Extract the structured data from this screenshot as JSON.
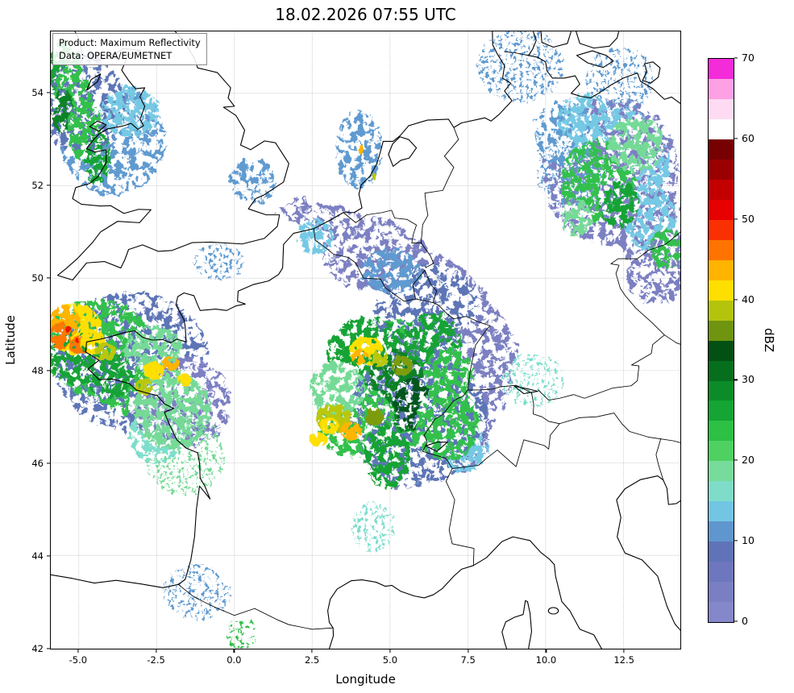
{
  "title": "18.02.2026 07:55 UTC",
  "info_box": {
    "line1": "Product: Maximum Reflectivity",
    "line2": "Data: OPERA/EUMETNET"
  },
  "axes": {
    "xlabel": "Longitude",
    "ylabel": "Latitude",
    "lon_min": -5.9,
    "lon_max": 14.33,
    "lat_min": 41.98,
    "lat_max": 55.34,
    "xticks": [
      {
        "v": -5.0,
        "label": "-5.0"
      },
      {
        "v": -2.5,
        "label": "-2.5"
      },
      {
        "v": 0.0,
        "label": "0.0"
      },
      {
        "v": 2.5,
        "label": "2.5"
      },
      {
        "v": 5.0,
        "label": "5.0"
      },
      {
        "v": 7.5,
        "label": "7.5"
      },
      {
        "v": 10.0,
        "label": "10.0"
      },
      {
        "v": 12.5,
        "label": "12.5"
      }
    ],
    "yticks": [
      {
        "v": 54,
        "label": "54"
      },
      {
        "v": 52,
        "label": "52"
      },
      {
        "v": 50,
        "label": "50"
      },
      {
        "v": 48,
        "label": "48"
      },
      {
        "v": 46,
        "label": "46"
      },
      {
        "v": 44,
        "label": "44"
      },
      {
        "v": 42,
        "label": "42"
      }
    ]
  },
  "colorbar": {
    "label": "dBZ",
    "min": 0,
    "max": 70,
    "ticks": [
      {
        "v": 0,
        "label": "0"
      },
      {
        "v": 10,
        "label": "10"
      },
      {
        "v": 20,
        "label": "20"
      },
      {
        "v": 30,
        "label": "30"
      },
      {
        "v": 40,
        "label": "40"
      },
      {
        "v": 50,
        "label": "50"
      },
      {
        "v": 60,
        "label": "60"
      },
      {
        "v": 70,
        "label": "70"
      }
    ],
    "segments": [
      "#8487c9",
      "#7a7fc3",
      "#6e77bd",
      "#6073b8",
      "#5f96ce",
      "#72c5e3",
      "#7edcc8",
      "#77dc9b",
      "#4fd162",
      "#2cc045",
      "#14a534",
      "#0c8c29",
      "#066f1e",
      "#035013",
      "#6f9410",
      "#b4c40c",
      "#ffdf00",
      "#ffb400",
      "#ff7400",
      "#fb3000",
      "#e60000",
      "#c30000",
      "#9b0000",
      "#770000",
      "#ffffff",
      "#fedbf3",
      "#fda0e4",
      "#f42bd9"
    ]
  },
  "palette": {
    "slate": "#7b80c2",
    "blue": "#5d74b6",
    "steel": "#5f9ad0",
    "cyan": "#74c9e4",
    "teal": "#7eddcc",
    "lgreen": "#74da96",
    "green": "#31c04c",
    "mgreen": "#16a336",
    "dgreen": "#0a8228",
    "ddgreen": "#05571b",
    "olive": "#7d9c10",
    "ygreen": "#bac70d",
    "yellow": "#ffdf00",
    "gold": "#ffb400",
    "orange": "#ff7800",
    "red": "#e81500",
    "grid": "#b3b3b3",
    "coast": "#000000"
  },
  "chart_data": {
    "type": "heatmap",
    "title": "18.02.2026 07:55 UTC",
    "product": "Maximum Reflectivity",
    "data_source": "OPERA/EUMETNET",
    "unit": "dBZ",
    "colorbar_range": [
      0,
      70
    ],
    "colorbar_ticks": [
      0,
      10,
      20,
      30,
      40,
      50,
      60,
      70
    ],
    "x_axis": {
      "label": "Longitude",
      "range": [
        -5.9,
        14.33
      ],
      "ticks": [
        -5.0,
        -2.5,
        0.0,
        2.5,
        5.0,
        7.5,
        10.0,
        12.5
      ]
    },
    "y_axis": {
      "label": "Latitude",
      "range": [
        41.98,
        55.34
      ],
      "ticks": [
        42,
        44,
        46,
        48,
        50,
        52,
        54
      ]
    },
    "grid": "dashed gray at tick positions",
    "legend_position": "right colorbar",
    "echo_regions": [
      {
        "area": "Brittany / western France",
        "lon": [
          -5.9,
          -1.0
        ],
        "lat": [
          46.5,
          49.5
        ],
        "max_dbz": 50,
        "note": "widespread 15-35 dBZ with embedded yellow/orange cores 40-48 dBZ and isolated red pixels"
      },
      {
        "area": "Eastern France / Switzerland / SW Germany",
        "lon": [
          2.5,
          8.0
        ],
        "lat": [
          45.8,
          49.0
        ],
        "max_dbz": 45,
        "note": "large green rain shield 15-35 dBZ, dark-green core near 5E 47.5N, yellow cells near 4.2E 48.4N and 3E 46.8N"
      },
      {
        "area": "Belgium to SW Germany stratiform band",
        "lon": [
          1.5,
          9.2
        ],
        "lat": [
          48.0,
          51.8
        ],
        "max_dbz": 15,
        "note": "slate-blue 0-12 dBZ band oriented SW-NE"
      },
      {
        "area": "NE Germany",
        "lon": [
          9.5,
          14.3
        ],
        "lat": [
          50.0,
          53.8
        ],
        "max_dbz": 25,
        "note": "speckled blue/cyan with green patches 15-25 dBZ"
      },
      {
        "area": "Wales / NW England / Irish Sea",
        "lon": [
          -5.9,
          -2.5
        ],
        "lat": [
          51.4,
          54.5
        ],
        "max_dbz": 30,
        "note": "diagonal green band with blue speckle"
      },
      {
        "area": "Netherlands",
        "lon": [
          3.3,
          5.6
        ],
        "lat": [
          51.9,
          53.6
        ],
        "max_dbz": 43,
        "note": "scattered light echoes, one small orange cell"
      },
      {
        "area": "Scattered specks",
        "lon": [
          -2.5,
          12.5
        ],
        "lat": [
          42.0,
          55.3
        ],
        "max_dbz": 20,
        "note": "isolated small echoes over Bay of Biscay coast, Denmark, central Germany, Rhone valley"
      }
    ]
  }
}
